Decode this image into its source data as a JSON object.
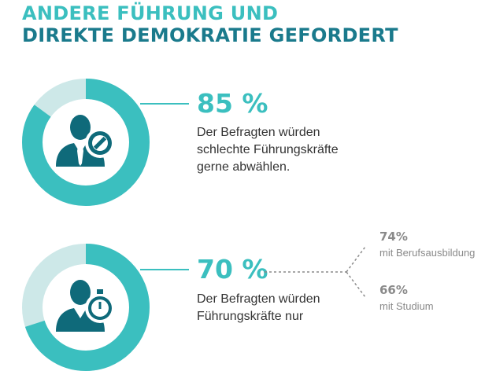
{
  "title": {
    "line1": "ANDERE FÜHRUNG UND",
    "line2": "DIREKTE DEMOKRATIE GEFORDERT"
  },
  "colors": {
    "accent_light": "#3bbfbf",
    "accent_dark": "#1a7a8c",
    "ring_remainder": "#cde8e8",
    "icon_dark": "#0f6a7a",
    "text": "#333333",
    "muted": "#8a8a8a"
  },
  "stats": [
    {
      "percent_label": "85 %",
      "value": 85,
      "icon": "person-blocked-icon",
      "lines": [
        "Der Befragten würden",
        "schlechte Führungskräfte",
        "gerne abwählen."
      ]
    },
    {
      "percent_label": "70 %",
      "value": 70,
      "icon": "person-stopwatch-icon",
      "lines": [
        "Der Befragten würden",
        "Führungskräfte nur"
      ],
      "breakdown": [
        {
          "value_label": "74%",
          "label": "mit Berufsausbildung"
        },
        {
          "value_label": "66%",
          "label": "mit Studium"
        }
      ]
    }
  ]
}
